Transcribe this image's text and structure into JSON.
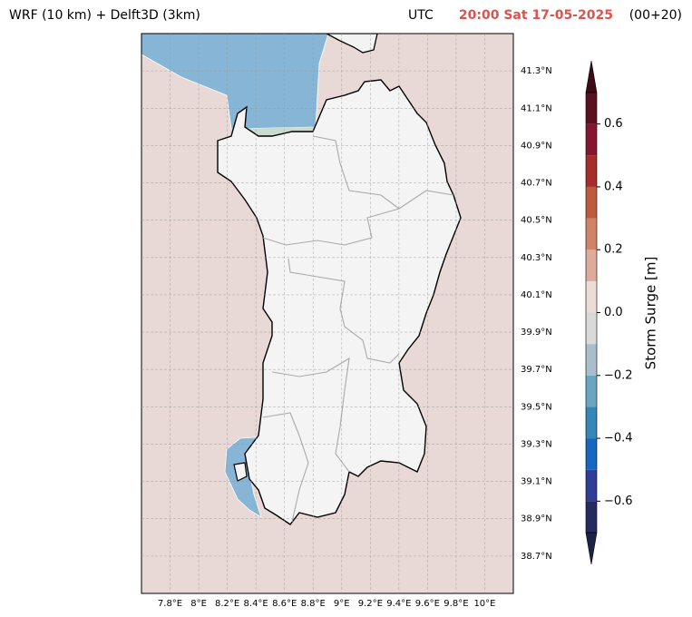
{
  "header": {
    "title": "WRF (10 km) + Delft3D (3km)",
    "utc": "UTC",
    "time": "20:00 Sat 17-05-2025",
    "lead": "(00+20)"
  },
  "map": {
    "lonlim": [
      7.6,
      10.2
    ],
    "latlim": [
      38.5,
      41.5
    ],
    "grid": true,
    "lon_ticks": [
      {
        "value": 7.8,
        "label": "7.8°E"
      },
      {
        "value": 8,
        "label": "8°E"
      },
      {
        "value": 8.2,
        "label": "8.2°E"
      },
      {
        "value": 8.4,
        "label": "8.4°E"
      },
      {
        "value": 8.6,
        "label": "8.6°E"
      },
      {
        "value": 8.8,
        "label": "8.8°E"
      },
      {
        "value": 9,
        "label": "9°E"
      },
      {
        "value": 9.2,
        "label": "9.2°E"
      },
      {
        "value": 9.4,
        "label": "9.4°E"
      },
      {
        "value": 9.6,
        "label": "9.6°E"
      },
      {
        "value": 9.8,
        "label": "9.8°E"
      },
      {
        "value": 10,
        "label": "10°E"
      }
    ],
    "lat_ticks": [
      {
        "value": 41.3,
        "label": "41.3°N"
      },
      {
        "value": 41.1,
        "label": "41.1°N"
      },
      {
        "value": 40.9,
        "label": "40.9°N"
      },
      {
        "value": 40.7,
        "label": "40.7°N"
      },
      {
        "value": 40.5,
        "label": "40.5°N"
      },
      {
        "value": 40.3,
        "label": "40.3°N"
      },
      {
        "value": 40.1,
        "label": "40.1°N"
      },
      {
        "value": 39.9,
        "label": "39.9°N"
      },
      {
        "value": 39.7,
        "label": "39.7°N"
      },
      {
        "value": 39.5,
        "label": "39.5°N"
      },
      {
        "value": 39.3,
        "label": "39.3°N"
      },
      {
        "value": 39.1,
        "label": "39.1°N"
      },
      {
        "value": 38.9,
        "label": "38.9°N"
      },
      {
        "value": 38.7,
        "label": "38.7°N"
      }
    ]
  },
  "colorbar": {
    "label": "Storm Surge [m]",
    "lim": [
      -0.7,
      0.7
    ],
    "levels": [
      -0.7,
      -0.6,
      -0.5,
      -0.4,
      -0.3,
      -0.2,
      -0.1,
      0,
      0.1,
      0.2,
      0.3,
      0.4,
      0.5,
      0.6,
      0.7
    ],
    "colors": [
      "#252b5e",
      "#2f3d96",
      "#1867be",
      "#3686b8",
      "#6aa6bf",
      "#a8bfcb",
      "#d9d9d9",
      "#ecdcd8",
      "#dcab9a",
      "#cf8468",
      "#bd5b3e",
      "#a52e2a",
      "#86162f",
      "#5b1022"
    ],
    "extend_colors": [
      "#1c2248",
      "#3e0b16"
    ],
    "ticks": [
      {
        "value": 0.6,
        "label": "0.6"
      },
      {
        "value": 0.4,
        "label": "0.4"
      },
      {
        "value": 0.2,
        "label": "0.2"
      },
      {
        "value": 0,
        "label": "0.0"
      },
      {
        "value": -0.2,
        "label": "−0.2"
      },
      {
        "value": -0.4,
        "label": "−0.4"
      },
      {
        "value": -0.6,
        "label": "−0.6"
      }
    ]
  }
}
